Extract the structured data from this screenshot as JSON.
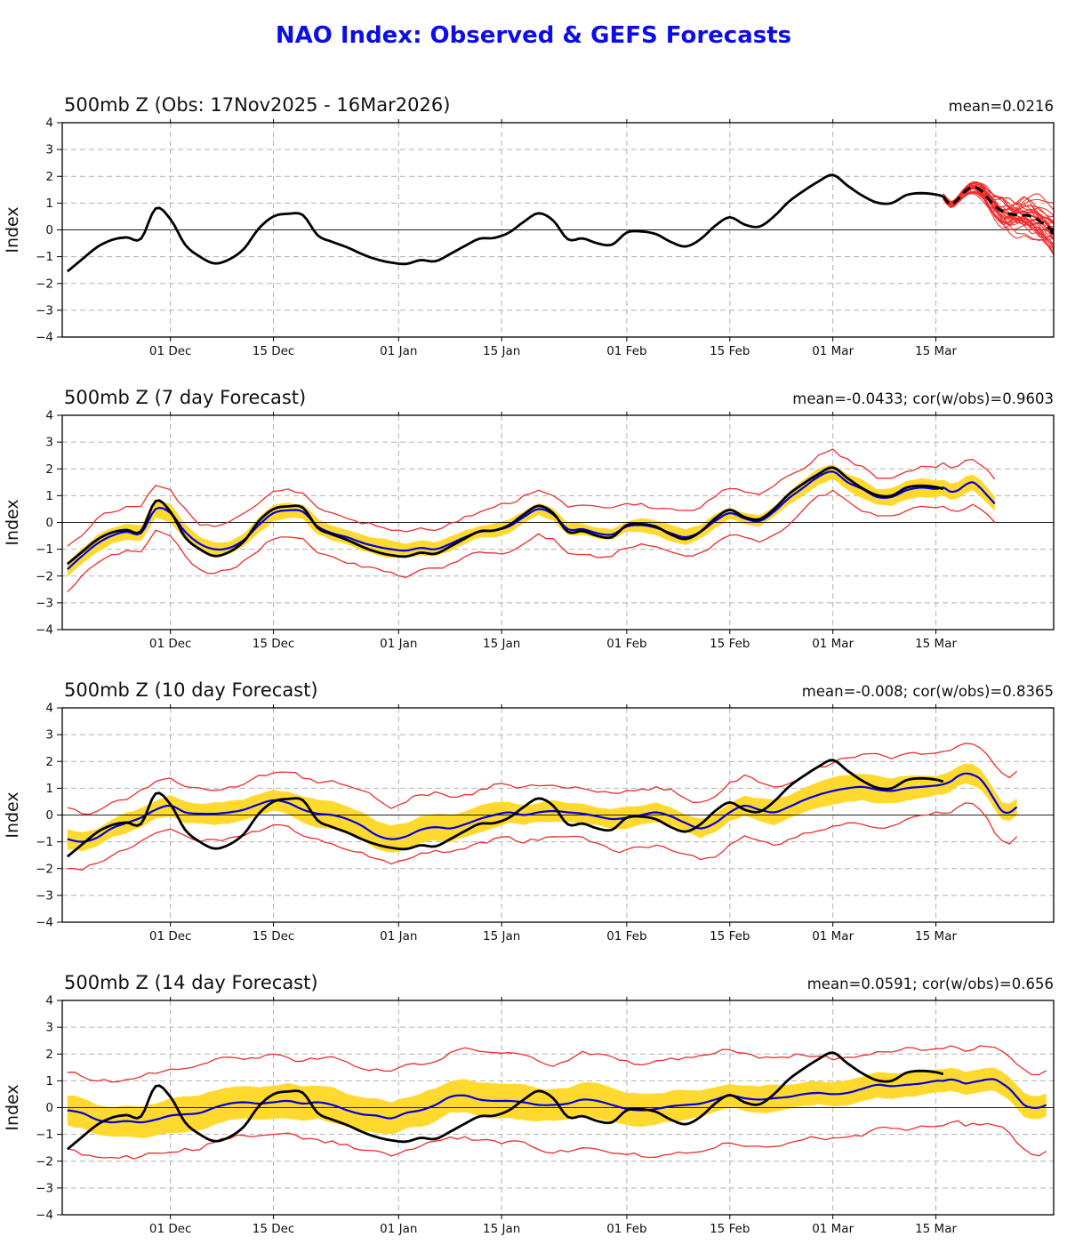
{
  "chart_data": {
    "type": "line",
    "title": "NAO Index: Observed & GEFS Forecasts",
    "ylabel": "Index",
    "x_unit": "days since 17Nov2025",
    "xlim": [
      -0.7,
      134
    ],
    "ylim": [
      -4,
      4
    ],
    "grid": true,
    "colors": {
      "title": "#0d0de8",
      "observed": "#000000",
      "ensemble_member": "#ee2c2c",
      "ensemble_mean": "#000000",
      "forecast_mean": "#0000dd",
      "band": "#ffd92e",
      "envelope": "#ee2c2c",
      "gridline": "#b3b3b3",
      "zero_line": "#222222"
    },
    "xticks": [
      {
        "day": 14,
        "label": "01 Dec"
      },
      {
        "day": 28,
        "label": "15 Dec"
      },
      {
        "day": 45,
        "label": "01 Jan"
      },
      {
        "day": 59,
        "label": "15 Jan"
      },
      {
        "day": 76,
        "label": "01 Feb"
      },
      {
        "day": 90,
        "label": "15 Feb"
      },
      {
        "day": 104,
        "label": "01 Mar"
      },
      {
        "day": 118,
        "label": "15 Mar"
      }
    ],
    "yticks": [
      {
        "v": 4,
        "label": "4"
      },
      {
        "v": 3,
        "label": "3"
      },
      {
        "v": 2,
        "label": "2"
      },
      {
        "v": 1,
        "label": "1"
      },
      {
        "v": 0,
        "label": "0"
      },
      {
        "v": -1,
        "label": "−1"
      },
      {
        "v": -2,
        "label": "−2"
      },
      {
        "v": -3,
        "label": "−3"
      },
      {
        "v": -4,
        "label": "−4"
      }
    ],
    "day_grid": [
      0,
      2,
      4,
      6,
      8,
      10,
      12,
      14,
      16,
      18,
      20,
      22,
      24,
      26,
      28,
      30,
      32,
      34,
      36,
      38,
      40,
      42,
      44,
      46,
      48,
      50,
      52,
      54,
      56,
      58,
      60,
      62,
      64,
      66,
      68,
      70,
      72,
      74,
      76,
      78,
      80,
      82,
      84,
      86,
      88,
      90,
      92,
      94,
      96,
      98,
      100,
      102,
      104,
      106,
      108,
      110,
      112,
      114,
      116,
      118
    ],
    "observed": {
      "extra_days": [
        119
      ],
      "values": [
        -1.55,
        -1.1,
        -0.65,
        -0.38,
        -0.28,
        -0.33,
        0.8,
        0.4,
        -0.55,
        -1.0,
        -1.25,
        -1.1,
        -0.7,
        0.05,
        0.5,
        0.6,
        0.55,
        -0.2,
        -0.45,
        -0.65,
        -0.9,
        -1.1,
        -1.22,
        -1.27,
        -1.13,
        -1.17,
        -0.9,
        -0.6,
        -0.33,
        -0.3,
        -0.1,
        0.3,
        0.62,
        0.35,
        -0.35,
        -0.32,
        -0.5,
        -0.55,
        -0.1,
        -0.06,
        -0.16,
        -0.45,
        -0.62,
        -0.35,
        0.15,
        0.47,
        0.2,
        0.12,
        0.5,
        1.05,
        1.45,
        1.8,
        2.05,
        1.65,
        1.28,
        1.02,
        1.0,
        1.3,
        1.37,
        1.32,
        1.25
      ]
    },
    "panels": [
      {
        "id": "obs",
        "title": "500mb Z (Obs: 17Nov2025 - 16Mar2026)",
        "stats": "mean=0.0216",
        "ensemble": {
          "days": [
            119,
            120,
            121,
            122,
            123,
            124,
            125,
            126,
            127,
            128,
            129,
            130,
            131,
            132,
            133,
            134
          ],
          "mean": [
            1.25,
            0.95,
            1.15,
            1.45,
            1.6,
            1.5,
            1.2,
            0.9,
            0.7,
            0.6,
            0.55,
            0.55,
            0.5,
            0.35,
            0.15,
            -0.05
          ],
          "members": 31,
          "seed": 5,
          "spread_base": 0.08,
          "spread_growth": 0.0062,
          "end_dot_day": 134,
          "end_dot_value": -0.05
        }
      },
      {
        "id": "fcst7",
        "title": "500mb Z (7 day Forecast)",
        "stats": "mean=-0.0433; cor(w/obs)=0.9603",
        "forecast": {
          "extra_days": [
            119,
            120,
            121,
            122,
            123,
            124,
            125,
            126
          ],
          "values": [
            -1.75,
            -1.25,
            -0.8,
            -0.5,
            -0.35,
            -0.4,
            0.5,
            0.35,
            -0.35,
            -0.8,
            -1.0,
            -0.95,
            -0.65,
            -0.1,
            0.35,
            0.45,
            0.4,
            -0.15,
            -0.4,
            -0.55,
            -0.75,
            -0.9,
            -1.0,
            -1.05,
            -0.95,
            -1.0,
            -0.8,
            -0.55,
            -0.35,
            -0.3,
            -0.15,
            0.2,
            0.5,
            0.3,
            -0.25,
            -0.25,
            -0.4,
            -0.45,
            -0.15,
            -0.1,
            -0.2,
            -0.4,
            -0.55,
            -0.35,
            0.05,
            0.35,
            0.15,
            0.05,
            0.4,
            0.9,
            1.3,
            1.7,
            1.9,
            1.5,
            1.25,
            0.95,
            0.95,
            1.2,
            1.3,
            1.25,
            1.3,
            1.15,
            1.2,
            1.4,
            1.5,
            1.3,
            1.0,
            0.7
          ],
          "band_halfwidth": 0.27,
          "band_jitter": 0.08,
          "envelope_offset": 0.85,
          "envelope_jitter": 0.15,
          "seed": 11
        }
      },
      {
        "id": "fcst10",
        "title": "500mb Z (10 day Forecast)",
        "stats": "mean=-0.008; cor(w/obs)=0.8365",
        "forecast": {
          "extra_days": [
            119,
            120,
            121,
            122,
            123,
            124,
            125,
            126,
            127,
            128,
            129
          ],
          "values": [
            -0.9,
            -1.0,
            -0.85,
            -0.5,
            -0.3,
            -0.1,
            0.2,
            0.35,
            0.1,
            0.05,
            0.05,
            0.1,
            0.2,
            0.4,
            0.55,
            0.45,
            0.2,
            0.05,
            0.0,
            -0.15,
            -0.4,
            -0.75,
            -0.9,
            -0.8,
            -0.55,
            -0.45,
            -0.5,
            -0.35,
            -0.15,
            0.0,
            0.1,
            0.0,
            0.1,
            0.15,
            0.1,
            0.05,
            -0.05,
            -0.15,
            -0.1,
            0.0,
            0.1,
            -0.05,
            -0.3,
            -0.5,
            -0.3,
            0.1,
            0.35,
            0.2,
            0.1,
            0.3,
            0.55,
            0.75,
            0.9,
            1.0,
            1.05,
            0.95,
            0.9,
            1.0,
            1.05,
            1.1,
            1.15,
            1.25,
            1.45,
            1.55,
            1.5,
            1.35,
            1.0,
            0.55,
            0.15,
            0.1,
            0.3
          ],
          "band_halfwidth": 0.42,
          "band_jitter": 0.1,
          "envelope_offset": 1.15,
          "envelope_jitter": 0.28,
          "seed": 23
        }
      },
      {
        "id": "fcst14",
        "title": "500mb Z (14 day Forecast)",
        "stats": "mean=0.0591; cor(w/obs)=0.656",
        "forecast": {
          "extra_days": [
            119,
            120,
            121,
            122,
            123,
            124,
            125,
            126,
            127,
            128,
            129,
            130,
            131,
            132,
            133
          ],
          "values": [
            -0.1,
            -0.2,
            -0.45,
            -0.55,
            -0.5,
            -0.55,
            -0.45,
            -0.3,
            -0.25,
            -0.2,
            0.0,
            0.15,
            0.2,
            0.15,
            0.2,
            0.25,
            0.15,
            0.2,
            0.1,
            -0.1,
            -0.25,
            -0.3,
            -0.4,
            -0.2,
            -0.1,
            0.1,
            0.4,
            0.45,
            0.3,
            0.25,
            0.25,
            0.2,
            0.1,
            0.1,
            0.15,
            0.3,
            0.25,
            0.1,
            -0.05,
            -0.1,
            -0.05,
            0.05,
            0.1,
            0.15,
            0.3,
            0.45,
            0.35,
            0.3,
            0.35,
            0.4,
            0.5,
            0.55,
            0.5,
            0.55,
            0.7,
            0.85,
            0.8,
            0.85,
            0.9,
            1.0,
            1.0,
            1.05,
            1.0,
            0.9,
            0.95,
            1.0,
            1.05,
            1.05,
            0.9,
            0.7,
            0.4,
            0.1,
            0.0,
            0.0,
            0.1
          ],
          "band_halfwidth": 0.55,
          "band_jitter": 0.12,
          "envelope_offset": 1.5,
          "envelope_jitter": 0.3,
          "seed": 37
        }
      }
    ]
  }
}
